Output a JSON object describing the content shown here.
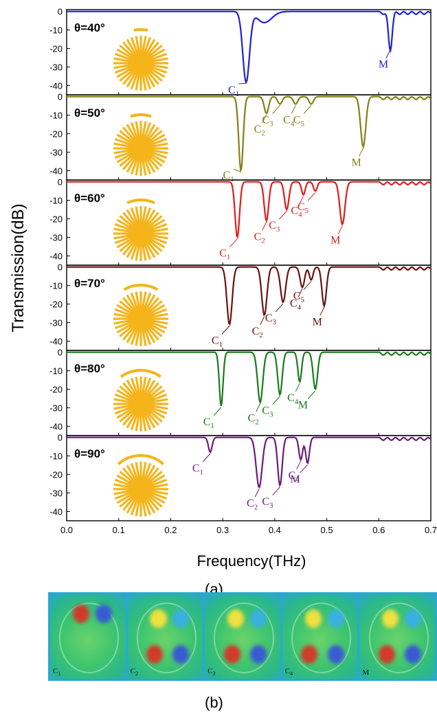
{
  "chart_data": {
    "type": "line",
    "xlabel": "Frequency(THz)",
    "ylabel": "Transmission(dB)",
    "xlim": [
      0.0,
      0.7
    ],
    "xticks": [
      "0.0",
      "0.1",
      "0.2",
      "0.3",
      "0.4",
      "0.5",
      "0.6",
      "0.7"
    ],
    "yticks": [
      "0",
      "-10",
      "-20",
      "-30",
      "-40"
    ],
    "panels": [
      {
        "theta": "θ=40°",
        "color": "#1f1fd6",
        "dips": [
          [
            0.345,
            -38,
            0.009
          ],
          [
            0.38,
            -6,
            0.02
          ],
          [
            0.622,
            -20,
            0.005
          ]
        ],
        "labels": [
          {
            "text": "C",
            "sub": "1",
            "f": 0.345,
            "db": -38
          },
          {
            "text": "M",
            "sub": "",
            "f": 0.622,
            "db": -20
          }
        ]
      },
      {
        "theta": "θ=50°",
        "color": "#808016",
        "dips": [
          [
            0.335,
            -40,
            0.006
          ],
          [
            0.384,
            -9,
            0.006
          ],
          [
            0.41,
            -4,
            0.006
          ],
          [
            0.44,
            -4,
            0.006
          ],
          [
            0.47,
            -4,
            0.006
          ],
          [
            0.57,
            -27,
            0.007
          ]
        ],
        "labels": [
          {
            "text": "C",
            "sub": "1",
            "f": 0.335,
            "db": -40
          },
          {
            "text": "C",
            "sub": "2",
            "f": 0.384,
            "db": -9
          },
          {
            "text": "C",
            "sub": "3",
            "f": 0.41,
            "db": -4
          },
          {
            "text": "C",
            "sub": "4",
            "f": 0.44,
            "db": -4
          },
          {
            "text": "C",
            "sub": "5",
            "f": 0.47,
            "db": -4
          },
          {
            "text": "M",
            "sub": "",
            "f": 0.57,
            "db": -27
          }
        ]
      },
      {
        "theta": "θ=60°",
        "color": "#e01b1b",
        "dips": [
          [
            0.328,
            -30,
            0.006
          ],
          [
            0.384,
            -21,
            0.006
          ],
          [
            0.423,
            -15,
            0.006
          ],
          [
            0.455,
            -7,
            0.005
          ],
          [
            0.478,
            -5,
            0.005
          ],
          [
            0.53,
            -23,
            0.007
          ]
        ],
        "labels": [
          {
            "text": "C",
            "sub": "1",
            "f": 0.328,
            "db": -30
          },
          {
            "text": "C",
            "sub": "2",
            "f": 0.384,
            "db": -21
          },
          {
            "text": "C",
            "sub": "3",
            "f": 0.423,
            "db": -15
          },
          {
            "text": "C",
            "sub": "4",
            "f": 0.455,
            "db": -7
          },
          {
            "text": "C",
            "sub": "5",
            "f": 0.478,
            "db": -5
          },
          {
            "text": "M",
            "sub": "",
            "f": 0.53,
            "db": -23
          }
        ]
      },
      {
        "theta": "θ=70°",
        "color": "#6b1010",
        "dips": [
          [
            0.313,
            -31,
            0.007
          ],
          [
            0.38,
            -26,
            0.007
          ],
          [
            0.416,
            -19,
            0.007
          ],
          [
            0.453,
            -11,
            0.006
          ],
          [
            0.47,
            -7,
            0.005
          ],
          [
            0.495,
            -21,
            0.006
          ]
        ],
        "labels": [
          {
            "text": "C",
            "sub": "1",
            "f": 0.313,
            "db": -31
          },
          {
            "text": "C",
            "sub": "2",
            "f": 0.38,
            "db": -26
          },
          {
            "text": "C",
            "sub": "3",
            "f": 0.416,
            "db": -19
          },
          {
            "text": "C",
            "sub": "4",
            "f": 0.453,
            "db": -11
          },
          {
            "text": "C",
            "sub": "5",
            "f": 0.47,
            "db": -7
          },
          {
            "text": "M",
            "sub": "",
            "f": 0.495,
            "db": -21
          }
        ]
      },
      {
        "theta": "θ=80°",
        "color": "#1a7a1a",
        "dips": [
          [
            0.297,
            -29,
            0.005
          ],
          [
            0.372,
            -27,
            0.007
          ],
          [
            0.41,
            -23,
            0.006
          ],
          [
            0.448,
            -16,
            0.005
          ],
          [
            0.478,
            -20,
            0.006
          ]
        ],
        "labels": [
          {
            "text": "C",
            "sub": "1",
            "f": 0.297,
            "db": -29
          },
          {
            "text": "C",
            "sub": "2",
            "f": 0.372,
            "db": -27
          },
          {
            "text": "C",
            "sub": "3",
            "f": 0.41,
            "db": -23
          },
          {
            "text": "C",
            "sub": "4",
            "f": 0.448,
            "db": -16
          },
          {
            "text": "M",
            "sub": "",
            "f": 0.478,
            "db": -20
          }
        ]
      },
      {
        "theta": "θ=90°",
        "color": "#6a1a7a",
        "dips": [
          [
            0.276,
            -8,
            0.005
          ],
          [
            0.37,
            -27,
            0.008
          ],
          [
            0.41,
            -26,
            0.006
          ],
          [
            0.45,
            -12,
            0.005
          ],
          [
            0.463,
            -14,
            0.005
          ]
        ],
        "labels": [
          {
            "text": "C",
            "sub": "1",
            "f": 0.276,
            "db": -8
          },
          {
            "text": "C",
            "sub": "2",
            "f": 0.37,
            "db": -27
          },
          {
            "text": "C",
            "sub": "3",
            "f": 0.41,
            "db": -26
          },
          {
            "text": "C",
            "sub": "4",
            "f": 0.45,
            "db": -12
          },
          {
            "text": "M",
            "sub": "",
            "f": 0.463,
            "db": -14
          }
        ]
      }
    ],
    "field_maps": [
      {
        "text": "C",
        "sub": "1"
      },
      {
        "text": "C",
        "sub": "2"
      },
      {
        "text": "C",
        "sub": "3"
      },
      {
        "text": "C",
        "sub": "4"
      },
      {
        "text": "M",
        "sub": ""
      }
    ],
    "caption_a": "(a)",
    "caption_b": "(b)",
    "grid": false
  }
}
